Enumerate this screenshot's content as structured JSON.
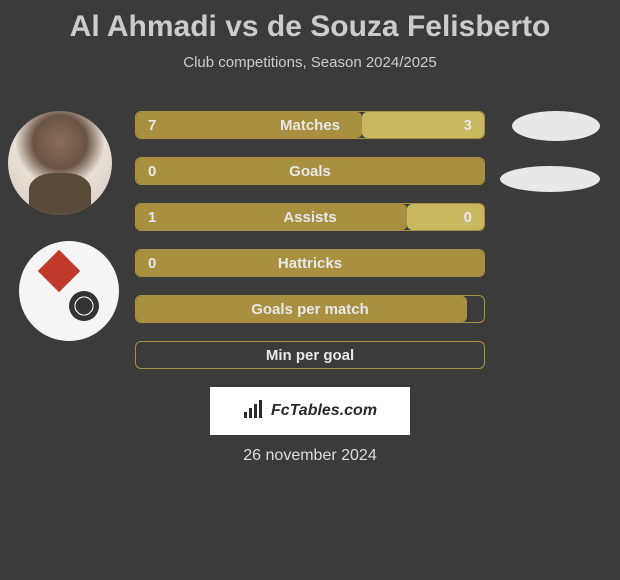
{
  "title": "Al Ahmadi vs de Souza Felisberto",
  "subtitle": "Club competitions, Season 2024/2025",
  "date": "26 november 2024",
  "footer": {
    "brand": "FcTables.com"
  },
  "colors": {
    "background": "#3b3b3b",
    "bar_primary": "#a89040",
    "bar_secondary": "#c8b860",
    "bar_border": "#a89040",
    "text": "#e8e8e8",
    "title_color": "#cccccc"
  },
  "bars": [
    {
      "label": "Matches",
      "left_value": "7",
      "right_value": "3",
      "left_pct": 65,
      "right_pct": 35,
      "show_values": true
    },
    {
      "label": "Goals",
      "left_value": "0",
      "right_value": "",
      "left_pct": 100,
      "right_pct": 0,
      "show_values": true
    },
    {
      "label": "Assists",
      "left_value": "1",
      "right_value": "0",
      "left_pct": 78,
      "right_pct": 22,
      "show_values": true
    },
    {
      "label": "Hattricks",
      "left_value": "0",
      "right_value": "",
      "left_pct": 100,
      "right_pct": 0,
      "show_values": true
    },
    {
      "label": "Goals per match",
      "left_value": "",
      "right_value": "",
      "left_pct": 95,
      "right_pct": 0,
      "show_values": false
    },
    {
      "label": "Min per goal",
      "left_value": "",
      "right_value": "",
      "left_pct": 0,
      "right_pct": 0,
      "show_values": false
    }
  ]
}
